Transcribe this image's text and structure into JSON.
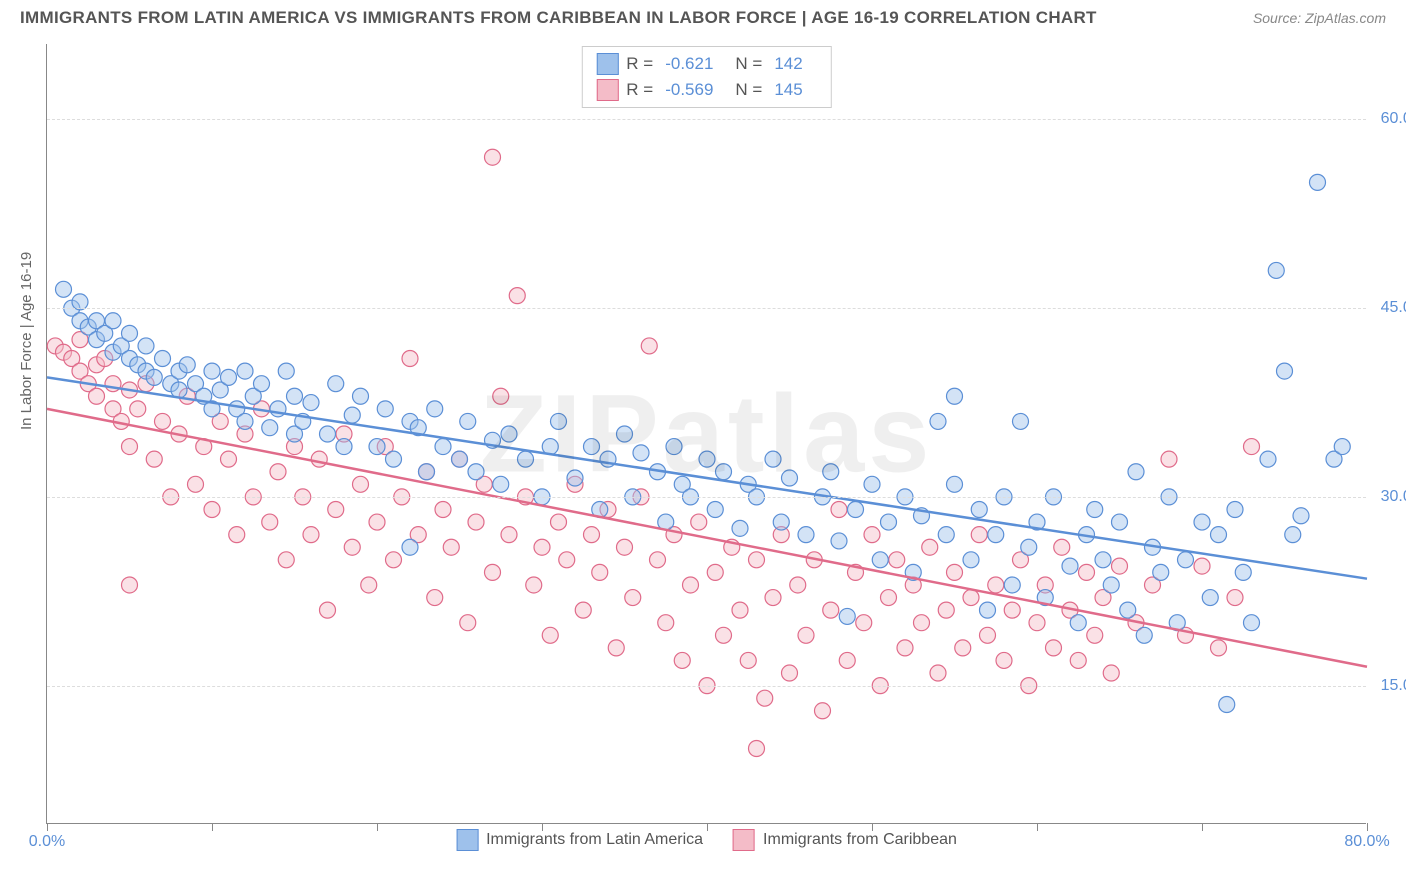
{
  "title": "IMMIGRANTS FROM LATIN AMERICA VS IMMIGRANTS FROM CARIBBEAN IN LABOR FORCE | AGE 16-19 CORRELATION CHART",
  "source_label": "Source:",
  "source_value": "ZipAtlas.com",
  "watermark": "ZIPatlas",
  "y_axis_label": "In Labor Force | Age 16-19",
  "chart": {
    "type": "scatter",
    "background_color": "#ffffff",
    "grid_color": "#dddddd",
    "axis_color": "#888888",
    "text_color": "#666666",
    "tick_label_color": "#5b8fd6",
    "xlim": [
      0,
      80
    ],
    "ylim": [
      4,
      66
    ],
    "x_ticks_shown": [
      0,
      80
    ],
    "x_minor_ticks": [
      0,
      10,
      20,
      30,
      40,
      50,
      60,
      70,
      80
    ],
    "y_ticks_shown": [
      15,
      30,
      45,
      60
    ],
    "y_grid": [
      15,
      30,
      45,
      60
    ],
    "marker_radius": 8,
    "marker_opacity": 0.45,
    "trend_line_width": 2.5,
    "title_fontsize": 17,
    "label_fontsize": 15,
    "tick_fontsize": 16
  },
  "series": [
    {
      "id": "latin_america",
      "label": "Immigrants from Latin America",
      "color_fill": "#9ec1eb",
      "color_stroke": "#5b8fd6",
      "stats": {
        "R": "-0.621",
        "N": "142"
      },
      "trend": {
        "x1": 0,
        "y1": 39.5,
        "x2": 80,
        "y2": 23.5
      },
      "points": [
        [
          1,
          46.5
        ],
        [
          1.5,
          45
        ],
        [
          2,
          45.5
        ],
        [
          2,
          44
        ],
        [
          2.5,
          43.5
        ],
        [
          3,
          44
        ],
        [
          3,
          42.5
        ],
        [
          3.5,
          43
        ],
        [
          4,
          44
        ],
        [
          4,
          41.5
        ],
        [
          4.5,
          42
        ],
        [
          5,
          41
        ],
        [
          5,
          43
        ],
        [
          5.5,
          40.5
        ],
        [
          6,
          40
        ],
        [
          6,
          42
        ],
        [
          6.5,
          39.5
        ],
        [
          7,
          41
        ],
        [
          7.5,
          39
        ],
        [
          8,
          40
        ],
        [
          8,
          38.5
        ],
        [
          8.5,
          40.5
        ],
        [
          9,
          39
        ],
        [
          9.5,
          38
        ],
        [
          10,
          40
        ],
        [
          10,
          37
        ],
        [
          10.5,
          38.5
        ],
        [
          11,
          39.5
        ],
        [
          11.5,
          37
        ],
        [
          12,
          40
        ],
        [
          12,
          36
        ],
        [
          12.5,
          38
        ],
        [
          13,
          39
        ],
        [
          13.5,
          35.5
        ],
        [
          14,
          37
        ],
        [
          14.5,
          40
        ],
        [
          15,
          35
        ],
        [
          15,
          38
        ],
        [
          15.5,
          36
        ],
        [
          16,
          37.5
        ],
        [
          17,
          35
        ],
        [
          17.5,
          39
        ],
        [
          18,
          34
        ],
        [
          18.5,
          36.5
        ],
        [
          19,
          38
        ],
        [
          20,
          34
        ],
        [
          20.5,
          37
        ],
        [
          21,
          33
        ],
        [
          22,
          36
        ],
        [
          22.5,
          35.5
        ],
        [
          23,
          32
        ],
        [
          23.5,
          37
        ],
        [
          24,
          34
        ],
        [
          25,
          33
        ],
        [
          25.5,
          36
        ],
        [
          26,
          32
        ],
        [
          27,
          34.5
        ],
        [
          27.5,
          31
        ],
        [
          28,
          35
        ],
        [
          29,
          33
        ],
        [
          30,
          30
        ],
        [
          30.5,
          34
        ],
        [
          31,
          36
        ],
        [
          32,
          31.5
        ],
        [
          33,
          34
        ],
        [
          33.5,
          29
        ],
        [
          34,
          33
        ],
        [
          35,
          35
        ],
        [
          35.5,
          30
        ],
        [
          36,
          33.5
        ],
        [
          37,
          32
        ],
        [
          37.5,
          28
        ],
        [
          38,
          34
        ],
        [
          38.5,
          31
        ],
        [
          39,
          30
        ],
        [
          40,
          33
        ],
        [
          40.5,
          29
        ],
        [
          41,
          32
        ],
        [
          42,
          27.5
        ],
        [
          42.5,
          31
        ],
        [
          22,
          26
        ],
        [
          43,
          30
        ],
        [
          44,
          33
        ],
        [
          44.5,
          28
        ],
        [
          45,
          31.5
        ],
        [
          46,
          27
        ],
        [
          47,
          30
        ],
        [
          47.5,
          32
        ],
        [
          48,
          26.5
        ],
        [
          48.5,
          20.5
        ],
        [
          49,
          29
        ],
        [
          50,
          31
        ],
        [
          50.5,
          25
        ],
        [
          51,
          28
        ],
        [
          52,
          30
        ],
        [
          52.5,
          24
        ],
        [
          53,
          28.5
        ],
        [
          54,
          36
        ],
        [
          54.5,
          27
        ],
        [
          55,
          31
        ],
        [
          55,
          38
        ],
        [
          56,
          25
        ],
        [
          56.5,
          29
        ],
        [
          57,
          21
        ],
        [
          57.5,
          27
        ],
        [
          58,
          30
        ],
        [
          58.5,
          23
        ],
        [
          59,
          36
        ],
        [
          59.5,
          26
        ],
        [
          60,
          28
        ],
        [
          60.5,
          22
        ],
        [
          61,
          30
        ],
        [
          62,
          24.5
        ],
        [
          62.5,
          20
        ],
        [
          63,
          27
        ],
        [
          63.5,
          29
        ],
        [
          64,
          25
        ],
        [
          64.5,
          23
        ],
        [
          65,
          28
        ],
        [
          65.5,
          21
        ],
        [
          66,
          32
        ],
        [
          66.5,
          19
        ],
        [
          67,
          26
        ],
        [
          67.5,
          24
        ],
        [
          68,
          30
        ],
        [
          68.5,
          20
        ],
        [
          69,
          25
        ],
        [
          70,
          28
        ],
        [
          70.5,
          22
        ],
        [
          71,
          27
        ],
        [
          71.5,
          13.5
        ],
        [
          72,
          29
        ],
        [
          72.5,
          24
        ],
        [
          73,
          20
        ],
        [
          74,
          33
        ],
        [
          74.5,
          48
        ],
        [
          75,
          40
        ],
        [
          75.5,
          27
        ],
        [
          76,
          28.5
        ],
        [
          77,
          55
        ],
        [
          78,
          33
        ],
        [
          78.5,
          34
        ]
      ]
    },
    {
      "id": "caribbean",
      "label": "Immigrants from Caribbean",
      "color_fill": "#f4bcc8",
      "color_stroke": "#e06b8a",
      "stats": {
        "R": "-0.569",
        "N": "145"
      },
      "trend": {
        "x1": 0,
        "y1": 37,
        "x2": 80,
        "y2": 16.5
      },
      "points": [
        [
          0.5,
          42
        ],
        [
          1,
          41.5
        ],
        [
          1.5,
          41
        ],
        [
          2,
          40
        ],
        [
          2,
          42.5
        ],
        [
          2.5,
          39
        ],
        [
          3,
          40.5
        ],
        [
          3,
          38
        ],
        [
          3.5,
          41
        ],
        [
          4,
          37
        ],
        [
          4,
          39
        ],
        [
          4.5,
          36
        ],
        [
          5,
          38.5
        ],
        [
          5,
          34
        ],
        [
          5.5,
          37
        ],
        [
          6,
          39
        ],
        [
          6.5,
          33
        ],
        [
          7,
          36
        ],
        [
          7.5,
          30
        ],
        [
          8,
          35
        ],
        [
          8.5,
          38
        ],
        [
          9,
          31
        ],
        [
          9.5,
          34
        ],
        [
          10,
          29
        ],
        [
          10.5,
          36
        ],
        [
          5,
          23
        ],
        [
          11,
          33
        ],
        [
          11.5,
          27
        ],
        [
          12,
          35
        ],
        [
          12.5,
          30
        ],
        [
          13,
          37
        ],
        [
          13.5,
          28
        ],
        [
          14,
          32
        ],
        [
          14.5,
          25
        ],
        [
          15,
          34
        ],
        [
          15.5,
          30
        ],
        [
          16,
          27
        ],
        [
          16.5,
          33
        ],
        [
          17,
          21
        ],
        [
          17.5,
          29
        ],
        [
          18,
          35
        ],
        [
          18.5,
          26
        ],
        [
          19,
          31
        ],
        [
          19.5,
          23
        ],
        [
          20,
          28
        ],
        [
          20.5,
          34
        ],
        [
          21,
          25
        ],
        [
          21.5,
          30
        ],
        [
          22,
          41
        ],
        [
          22.5,
          27
        ],
        [
          23,
          32
        ],
        [
          23.5,
          22
        ],
        [
          24,
          29
        ],
        [
          24.5,
          26
        ],
        [
          25,
          33
        ],
        [
          25.5,
          20
        ],
        [
          26,
          28
        ],
        [
          26.5,
          31
        ],
        [
          27,
          24
        ],
        [
          27.5,
          38
        ],
        [
          28,
          27
        ],
        [
          28.5,
          46
        ],
        [
          29,
          30
        ],
        [
          29.5,
          23
        ],
        [
          30,
          26
        ],
        [
          30.5,
          19
        ],
        [
          27,
          57
        ],
        [
          31,
          28
        ],
        [
          31.5,
          25
        ],
        [
          32,
          31
        ],
        [
          32.5,
          21
        ],
        [
          33,
          27
        ],
        [
          33.5,
          24
        ],
        [
          34,
          29
        ],
        [
          34.5,
          18
        ],
        [
          35,
          26
        ],
        [
          35.5,
          22
        ],
        [
          36,
          30
        ],
        [
          36.5,
          42
        ],
        [
          37,
          25
        ],
        [
          37.5,
          20
        ],
        [
          38,
          27
        ],
        [
          38.5,
          17
        ],
        [
          39,
          23
        ],
        [
          39.5,
          28
        ],
        [
          40,
          15
        ],
        [
          40.5,
          24
        ],
        [
          41,
          19
        ],
        [
          41.5,
          26
        ],
        [
          42,
          21
        ],
        [
          42.5,
          17
        ],
        [
          43,
          25
        ],
        [
          43.5,
          14
        ],
        [
          44,
          22
        ],
        [
          44.5,
          27
        ],
        [
          45,
          16
        ],
        [
          45.5,
          23
        ],
        [
          46,
          19
        ],
        [
          46.5,
          25
        ],
        [
          47,
          13
        ],
        [
          47.5,
          21
        ],
        [
          48,
          29
        ],
        [
          48.5,
          17
        ],
        [
          49,
          24
        ],
        [
          49.5,
          20
        ],
        [
          50,
          27
        ],
        [
          50.5,
          15
        ],
        [
          51,
          22
        ],
        [
          51.5,
          25
        ],
        [
          52,
          18
        ],
        [
          52.5,
          23
        ],
        [
          53,
          20
        ],
        [
          53.5,
          26
        ],
        [
          54,
          16
        ],
        [
          43,
          10
        ],
        [
          54.5,
          21
        ],
        [
          55,
          24
        ],
        [
          55.5,
          18
        ],
        [
          56,
          22
        ],
        [
          56.5,
          27
        ],
        [
          57,
          19
        ],
        [
          57.5,
          23
        ],
        [
          58,
          17
        ],
        [
          58.5,
          21
        ],
        [
          59,
          25
        ],
        [
          59.5,
          15
        ],
        [
          60,
          20
        ],
        [
          60.5,
          23
        ],
        [
          61,
          18
        ],
        [
          61.5,
          26
        ],
        [
          62,
          21
        ],
        [
          62.5,
          17
        ],
        [
          63,
          24
        ],
        [
          63.5,
          19
        ],
        [
          64,
          22
        ],
        [
          64.5,
          16
        ],
        [
          65,
          24.5
        ],
        [
          66,
          20
        ],
        [
          67,
          23
        ],
        [
          68,
          33
        ],
        [
          69,
          19
        ],
        [
          70,
          24.5
        ],
        [
          71,
          18
        ],
        [
          72,
          22
        ],
        [
          73,
          34
        ]
      ]
    }
  ],
  "legend_top": {
    "R_label": "R =",
    "N_label": "N ="
  }
}
